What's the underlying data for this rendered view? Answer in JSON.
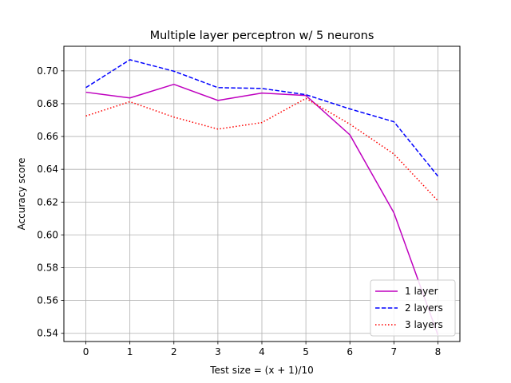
{
  "chart_data": {
    "type": "line",
    "title": "Multiple layer perceptron w/ 5 neurons",
    "xlabel": "Test size = (x + 1)/10",
    "ylabel": "Accuracy score",
    "x": [
      0,
      1,
      2,
      3,
      4,
      5,
      6,
      7,
      8
    ],
    "xlim": [
      -0.5,
      8.5
    ],
    "ylim": [
      0.535,
      0.715
    ],
    "xticks": [
      0,
      1,
      2,
      3,
      4,
      5,
      6,
      7,
      8
    ],
    "yticks": [
      0.54,
      0.56,
      0.58,
      0.6,
      0.62,
      0.64,
      0.66,
      0.68,
      0.7
    ],
    "ytick_labels": [
      "0.54",
      "0.56",
      "0.58",
      "0.60",
      "0.62",
      "0.64",
      "0.66",
      "0.68",
      "0.70"
    ],
    "grid": true,
    "legend_position": "lower-right",
    "series": [
      {
        "name": "1 layer",
        "color": "#bf00bf",
        "style": "solid",
        "values": [
          0.687,
          0.6835,
          0.6918,
          0.682,
          0.6865,
          0.685,
          0.661,
          0.6135,
          0.539
        ]
      },
      {
        "name": "2 layers",
        "color": "#0000ff",
        "style": "dashed",
        "values": [
          0.6898,
          0.7068,
          0.6998,
          0.6898,
          0.6893,
          0.6855,
          0.6768,
          0.669,
          0.6358
        ]
      },
      {
        "name": "3 layers",
        "color": "#ff0000",
        "style": "dotted",
        "values": [
          0.6725,
          0.6812,
          0.6718,
          0.6645,
          0.6685,
          0.6832,
          0.6675,
          0.6493,
          0.6208
        ]
      }
    ]
  }
}
